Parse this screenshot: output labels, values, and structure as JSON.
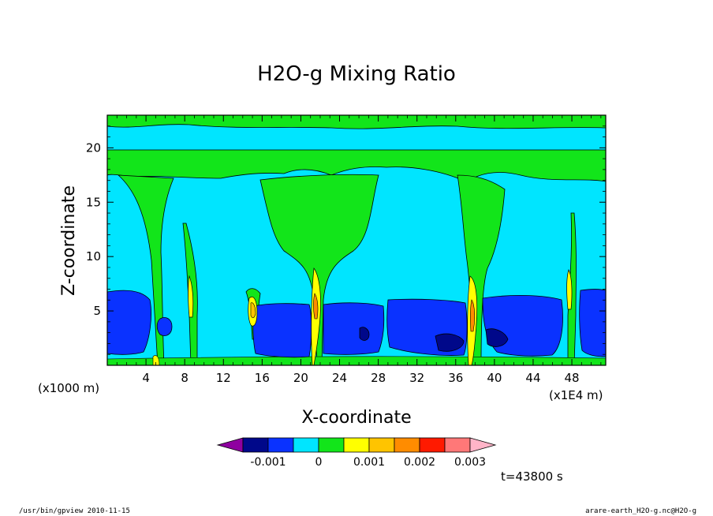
{
  "chart_data": {
    "type": "heatmap",
    "title": "H2O-g Mixing Ratio",
    "xlabel": "X-coordinate",
    "ylabel": "Z-coordinate",
    "x_unit_left": "(x1000 m)",
    "x_unit_right": "(x1E4 m)",
    "xlim": [
      0,
      51.5
    ],
    "ylim": [
      0,
      23
    ],
    "x_ticks": [
      4,
      8,
      12,
      16,
      20,
      24,
      28,
      32,
      36,
      40,
      44,
      48
    ],
    "y_ticks": [
      5,
      10,
      15,
      20
    ],
    "colorbar": {
      "levels": [
        -0.002,
        -0.0015,
        -0.001,
        -0.0005,
        0,
        0.0005,
        0.001,
        0.0015,
        0.002,
        0.0025,
        0.003
      ],
      "colors": [
        "#8f00a0",
        "#00088a",
        "#0a32ff",
        "#00e5ff",
        "#12e51a",
        "#ffff00",
        "#ffc400",
        "#ff8c00",
        "#ff1a00",
        "#ff7878",
        "#ffb4c8"
      ],
      "labels": [
        {
          "value": -0.001,
          "text": "-0.001"
        },
        {
          "value": 0,
          "text": "0"
        },
        {
          "value": 0.001,
          "text": "0.001"
        },
        {
          "value": 0.002,
          "text": "0.002"
        },
        {
          "value": 0.003,
          "text": "0.003"
        }
      ]
    },
    "time_label": "t=43800 s"
  },
  "footer": {
    "left": "/usr/bin/gpview  2010-11-15",
    "right": "arare-earth_H2O-g.nc@H2O-g"
  }
}
